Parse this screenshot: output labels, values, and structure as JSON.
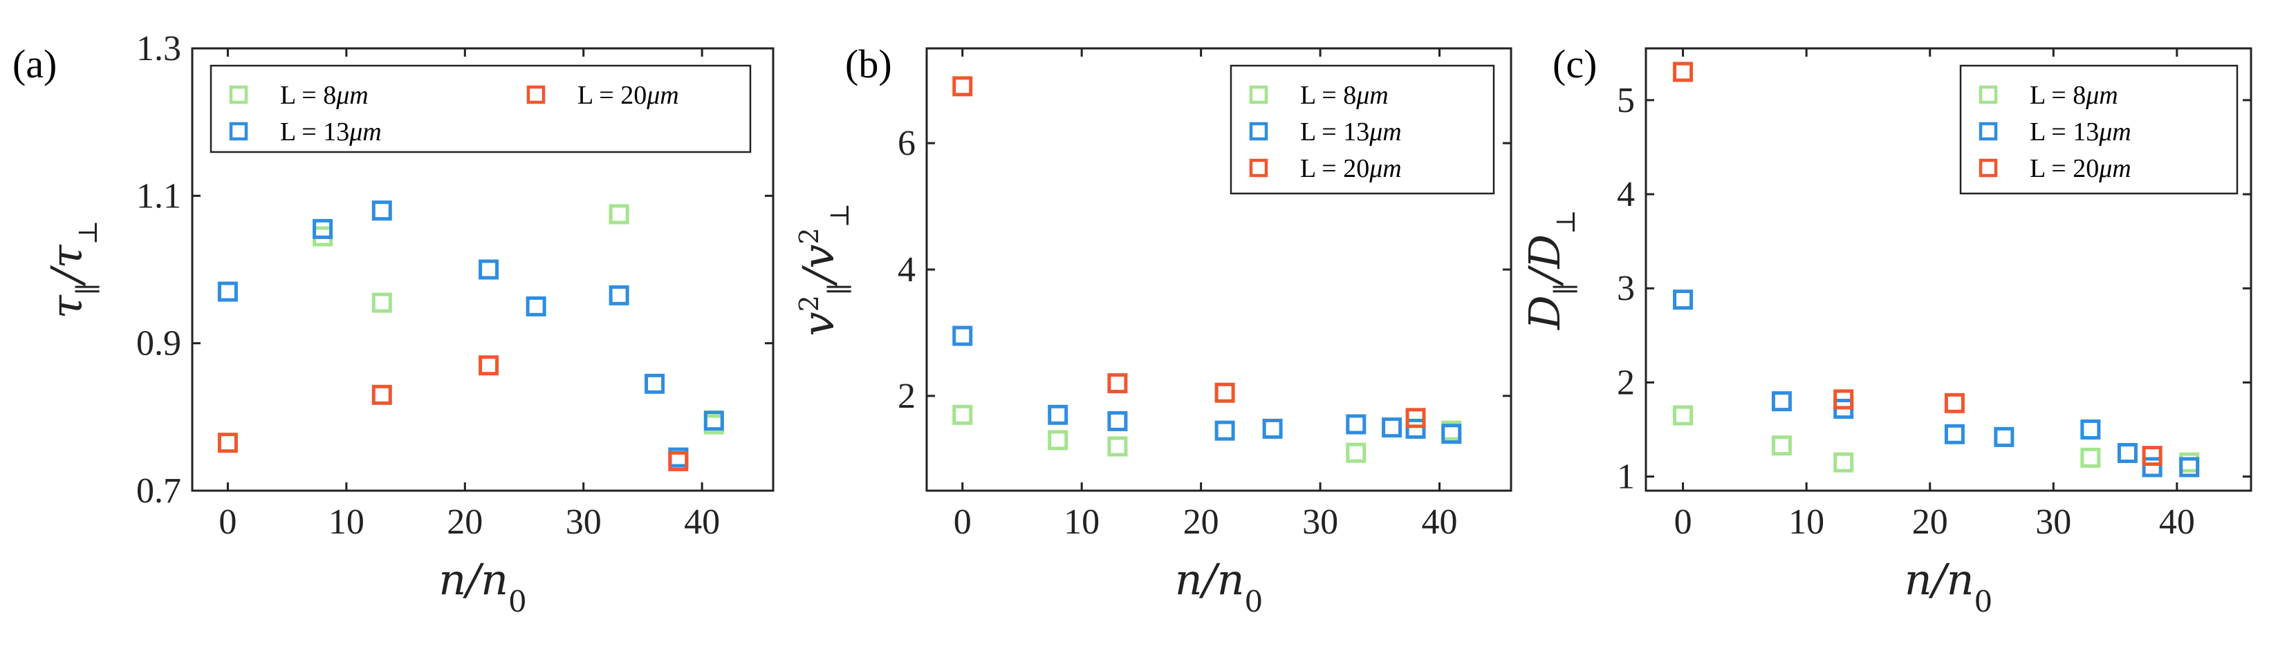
{
  "chart_data": [
    {
      "type": "scatter",
      "panel": "(a)",
      "xlabel": "n/n",
      "xlabel_sub": "0",
      "ylabel_main": "τ",
      "ylabel_sub1": "∥",
      "ylabel_sep": "/τ",
      "ylabel_sub2": "⊥",
      "xlim": [
        -3,
        46
      ],
      "ylim": [
        0.7,
        1.3
      ],
      "xticks": [
        0,
        10,
        20,
        30,
        40
      ],
      "yticks": [
        0.7,
        0.9,
        1.1,
        1.3
      ],
      "xtick_labels": [
        "0",
        "10",
        "20",
        "30",
        "40"
      ],
      "ytick_labels": [
        "0.7",
        "0.9",
        "1.1",
        "1.3"
      ],
      "legend_position": "top",
      "series": [
        {
          "name": "L = 8",
          "unit": "μm",
          "color": "#a3e48e",
          "x": [
            0,
            8,
            13,
            33,
            38,
            41
          ],
          "y": [
            0.97,
            1.045,
            0.955,
            1.075,
            0.745,
            0.79
          ]
        },
        {
          "name": "L = 13",
          "unit": "μm",
          "color": "#2f8de0",
          "x": [
            0,
            8,
            13,
            22,
            26,
            33,
            36,
            38,
            41
          ],
          "y": [
            0.97,
            1.055,
            1.08,
            1.0,
            0.95,
            0.965,
            0.845,
            0.745,
            0.795
          ]
        },
        {
          "name": "L = 20",
          "unit": "μm",
          "color": "#f0562e",
          "x": [
            0,
            13,
            22,
            38
          ],
          "y": [
            0.765,
            0.83,
            0.87,
            0.74
          ]
        }
      ]
    },
    {
      "type": "scatter",
      "panel": "(b)",
      "xlabel": "n/n",
      "xlabel_sub": "0",
      "ylabel_main": "v",
      "ylabel_sub1": "∥",
      "ylabel_sep": "/v",
      "ylabel_sub2": "⊥",
      "ylabel_sup": "2",
      "xlim": [
        -3,
        46
      ],
      "ylim": [
        0.5,
        7.5
      ],
      "xticks": [
        0,
        10,
        20,
        30,
        40
      ],
      "yticks": [
        2,
        4,
        6
      ],
      "xtick_labels": [
        "0",
        "10",
        "20",
        "30",
        "40"
      ],
      "ytick_labels": [
        "2",
        "4",
        "6"
      ],
      "legend_position": "top-right",
      "series": [
        {
          "name": "L = 8",
          "unit": "μm",
          "color": "#a3e48e",
          "x": [
            0,
            8,
            13,
            33,
            41
          ],
          "y": [
            1.7,
            1.3,
            1.2,
            1.1,
            1.45
          ]
        },
        {
          "name": "L = 13",
          "unit": "μm",
          "color": "#2f8de0",
          "x": [
            0,
            8,
            13,
            22,
            26,
            33,
            36,
            38,
            41
          ],
          "y": [
            2.95,
            1.7,
            1.6,
            1.45,
            1.48,
            1.55,
            1.5,
            1.48,
            1.4
          ]
        },
        {
          "name": "L = 20",
          "unit": "μm",
          "color": "#f0562e",
          "x": [
            0,
            13,
            22,
            38
          ],
          "y": [
            6.9,
            2.2,
            2.05,
            1.65
          ]
        }
      ]
    },
    {
      "type": "scatter",
      "panel": "(c)",
      "xlabel": "n/n",
      "xlabel_sub": "0",
      "ylabel_main": "D",
      "ylabel_sub1": "∥",
      "ylabel_sep": "/D",
      "ylabel_sub2": "⊥",
      "xlim": [
        -3,
        46
      ],
      "ylim": [
        0.85,
        5.55
      ],
      "xticks": [
        0,
        10,
        20,
        30,
        40
      ],
      "yticks": [
        1,
        2,
        3,
        4,
        5
      ],
      "xtick_labels": [
        "0",
        "10",
        "20",
        "30",
        "40"
      ],
      "ytick_labels": [
        "1",
        "2",
        "3",
        "4",
        "5"
      ],
      "legend_position": "top-right",
      "series": [
        {
          "name": "L = 8",
          "unit": "μm",
          "color": "#a3e48e",
          "x": [
            0,
            8,
            13,
            33,
            41
          ],
          "y": [
            1.65,
            1.33,
            1.15,
            1.2,
            1.15
          ]
        },
        {
          "name": "L = 13",
          "unit": "μm",
          "color": "#2f8de0",
          "x": [
            0,
            8,
            13,
            22,
            26,
            33,
            36,
            38,
            41
          ],
          "y": [
            2.88,
            1.8,
            1.72,
            1.45,
            1.42,
            1.5,
            1.25,
            1.1,
            1.1
          ]
        },
        {
          "name": "L = 20",
          "unit": "μm",
          "color": "#f0562e",
          "x": [
            0,
            13,
            22,
            38
          ],
          "y": [
            5.3,
            1.82,
            1.78,
            1.22
          ]
        }
      ]
    }
  ]
}
